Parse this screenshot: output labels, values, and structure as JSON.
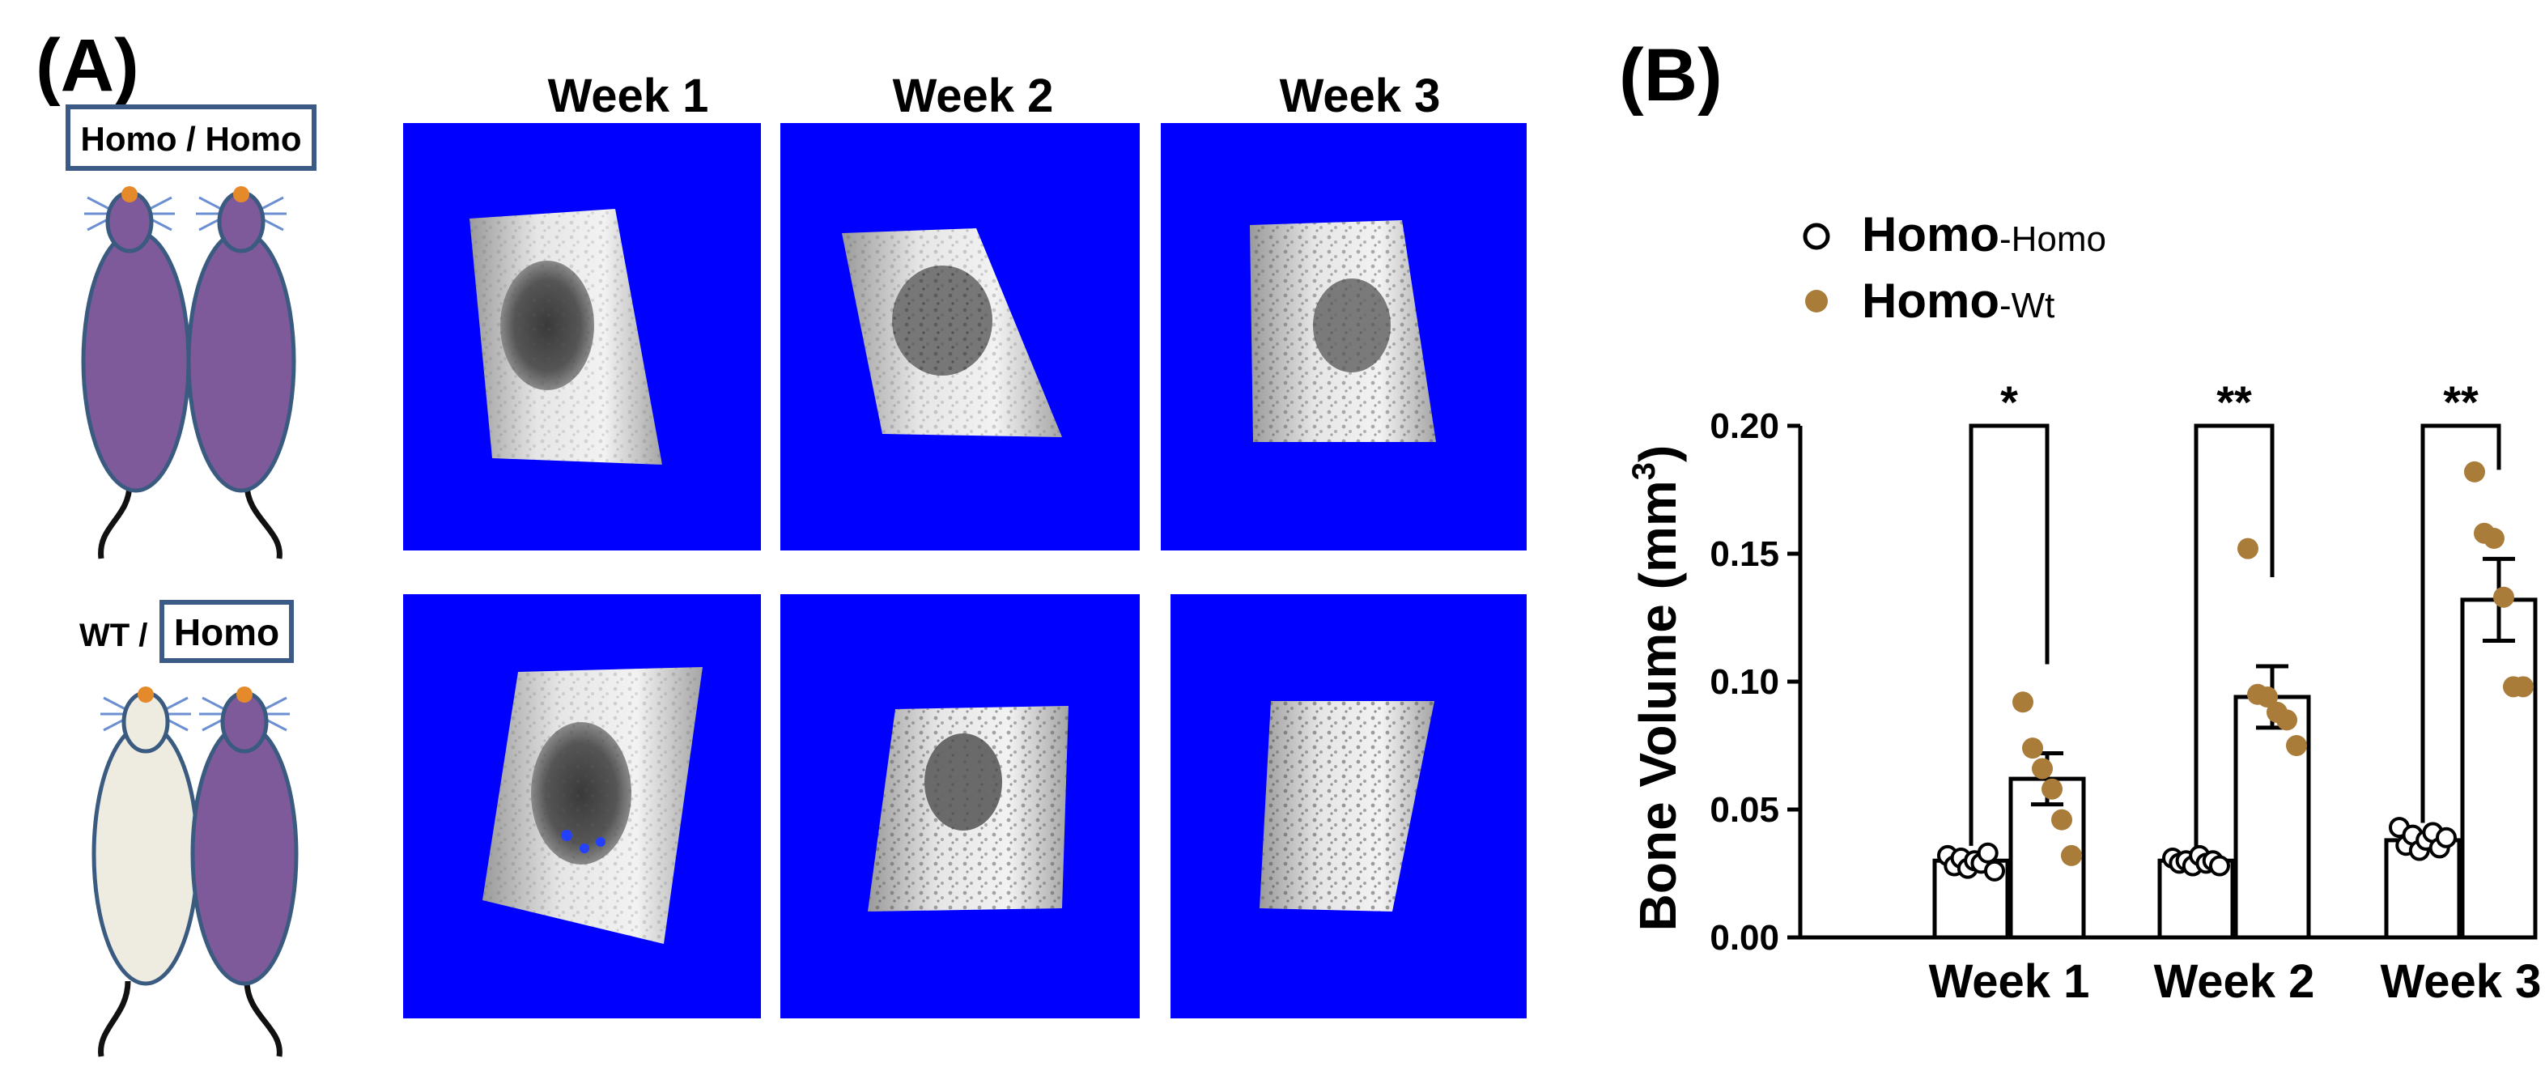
{
  "panel_a": {
    "label": "(A)",
    "pair_top": {
      "label": "Homo / Homo"
    },
    "pair_bottom": {
      "label_left": "WT /",
      "label_boxed": "Homo"
    },
    "week_headers": [
      "Week 1",
      "Week 2",
      "Week 3"
    ],
    "ct_background": "#0000ff"
  },
  "panel_b": {
    "label": "(B)",
    "legend": [
      {
        "bold": "Homo",
        "rest": "-Homo",
        "marker": "open-circle"
      },
      {
        "bold": "Homo",
        "rest": "-Wt",
        "marker": "filled-circle"
      }
    ]
  },
  "colors": {
    "mouse_homo": "#7e5a9b",
    "mouse_wt": "#eeebe0",
    "mouse_outline": "#3a5a80",
    "mouse_nose": "#e58a2b",
    "label_box": "#3b5a86",
    "point_wt": "#a97c3a",
    "bone": "#d8d8d8"
  },
  "chart_data": {
    "type": "bar",
    "categories": [
      "Week 1",
      "Week 2",
      "Week 3"
    ],
    "ylabel": "Bone Volume (mm",
    "ylabel_sup": "3",
    "ylabel_close": ")",
    "ylim": [
      0,
      0.2
    ],
    "yticks": [
      0.0,
      0.05,
      0.1,
      0.15,
      0.2
    ],
    "ytick_labels": [
      "0.00",
      "0.05",
      "0.10",
      "0.15",
      "0.20"
    ],
    "series": [
      {
        "name": "Homo-Homo",
        "marker": "open-circle",
        "values": [
          0.03,
          0.03,
          0.038
        ],
        "sem": [
          0.002,
          0.001,
          0.003
        ],
        "points": [
          [
            0.032,
            0.028,
            0.031,
            0.027,
            0.03,
            0.029,
            0.033,
            0.026
          ],
          [
            0.031,
            0.029,
            0.03,
            0.028,
            0.032,
            0.029,
            0.03,
            0.028
          ],
          [
            0.043,
            0.036,
            0.04,
            0.034,
            0.038,
            0.041,
            0.035,
            0.039
          ]
        ]
      },
      {
        "name": "Homo-Wt",
        "marker": "filled-circle",
        "values": [
          0.062,
          0.094,
          0.132
        ],
        "sem": [
          0.01,
          0.012,
          0.016
        ],
        "points": [
          [
            0.092,
            0.074,
            0.066,
            0.058,
            0.046,
            0.032
          ],
          [
            0.152,
            0.095,
            0.094,
            0.088,
            0.085,
            0.075
          ],
          [
            0.182,
            0.158,
            0.156,
            0.133,
            0.098,
            0.098
          ]
        ]
      }
    ],
    "significance": [
      "*",
      "**",
      "**"
    ]
  }
}
